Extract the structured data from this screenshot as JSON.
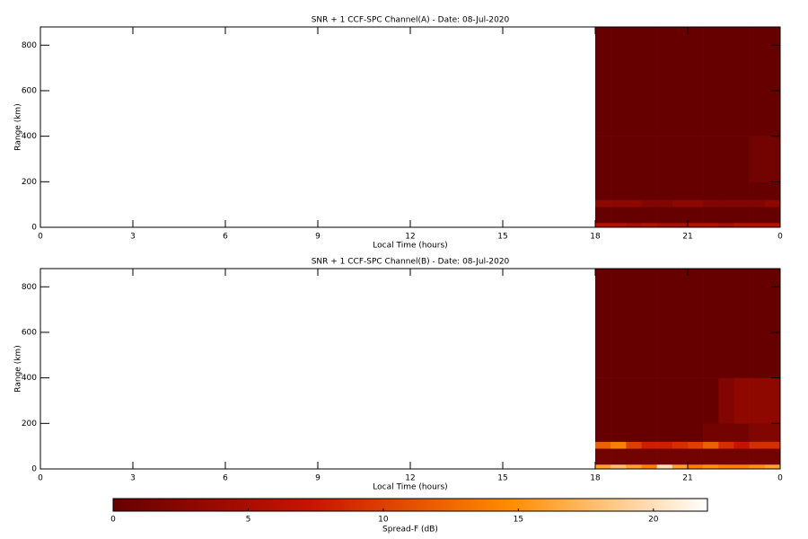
{
  "chart_data": [
    {
      "type": "heatmap",
      "title": "SNR + 1 CCF-SPC Channel(A) - Date: 08-Jul-2020",
      "xlabel": "Local Time (hours)",
      "ylabel": "Range (km)",
      "xlim": [
        0,
        24
      ],
      "ylim": [
        0,
        880
      ],
      "xticks": [
        0,
        3,
        6,
        9,
        12,
        15,
        18,
        21,
        {
          "value": 24,
          "label": "0"
        }
      ],
      "yticks": [
        0,
        200,
        400,
        600,
        800
      ],
      "x_edges": [
        18,
        18.5,
        19,
        19.5,
        20,
        20.5,
        21,
        21.5,
        22,
        22.5,
        23,
        23.5,
        24
      ],
      "y_edges": [
        0,
        20,
        90,
        120,
        200,
        400,
        880
      ],
      "z": [
        [
          6,
          6,
          5,
          6,
          5,
          5,
          6,
          6,
          5,
          6,
          6,
          6
        ],
        [
          0,
          0,
          0,
          0,
          0,
          0,
          0,
          0,
          0,
          0,
          0,
          0
        ],
        [
          3,
          3,
          3,
          2,
          2,
          3,
          3,
          2,
          2,
          2,
          2,
          3
        ],
        [
          0,
          0,
          0,
          0,
          0,
          0,
          0,
          0,
          0,
          0,
          0,
          0
        ],
        [
          0,
          0,
          0,
          0,
          0,
          0,
          0,
          0,
          0,
          0,
          1,
          1
        ],
        [
          0,
          0,
          0,
          0,
          0,
          0,
          0,
          0,
          0,
          0,
          0,
          0
        ]
      ]
    },
    {
      "type": "heatmap",
      "title": "SNR + 1 CCF-SPC Channel(B) - Date: 08-Jul-2020",
      "xlabel": "Local Time (hours)",
      "ylabel": "Range (km)",
      "xlim": [
        0,
        24
      ],
      "ylim": [
        0,
        880
      ],
      "xticks": [
        0,
        3,
        6,
        9,
        12,
        15,
        18,
        21,
        {
          "value": 24,
          "label": "0"
        }
      ],
      "yticks": [
        0,
        200,
        400,
        600,
        800
      ],
      "x_edges": [
        18,
        18.5,
        19,
        19.5,
        20,
        20.5,
        21,
        21.5,
        22,
        22.5,
        23,
        23.5,
        24
      ],
      "y_edges": [
        0,
        20,
        90,
        120,
        200,
        400,
        880
      ],
      "z": [
        [
          16,
          18,
          16,
          14,
          20,
          16,
          14,
          15,
          14,
          14,
          15,
          16
        ],
        [
          1,
          1,
          1,
          1,
          1,
          1,
          1,
          1,
          1,
          1,
          1,
          1
        ],
        [
          12,
          14,
          10,
          8,
          8,
          9,
          10,
          12,
          9,
          7,
          9,
          9
        ],
        [
          0,
          0,
          0,
          0,
          0,
          0,
          0,
          1,
          1,
          1,
          2,
          2
        ],
        [
          0,
          0,
          0,
          0,
          0,
          0,
          0,
          0,
          2,
          3,
          3,
          3
        ],
        [
          0,
          0,
          0,
          0,
          0,
          0,
          0,
          0,
          0,
          0,
          0,
          0
        ]
      ]
    }
  ],
  "colorbar": {
    "label": "Spread-F (dB)",
    "lim": [
      0,
      22
    ],
    "ticks": [
      0,
      5,
      10,
      15,
      20
    ],
    "colormap": [
      "#660000",
      "#c81400",
      "#ff8c00",
      "#ffffff"
    ]
  }
}
